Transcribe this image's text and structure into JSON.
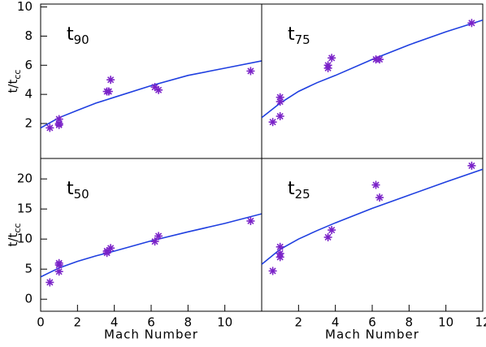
{
  "chart_data": [
    {
      "type": "scatter",
      "title": "t",
      "title_sub": "90",
      "ylabel": "t/t",
      "ylabel_sub": "cc",
      "xlim": [
        0,
        12
      ],
      "ylim": [
        -0.4,
        10.2
      ],
      "yticks": [
        2,
        4,
        6,
        8,
        10
      ],
      "color": "#7a22c8",
      "x": [
        0.5,
        1.0,
        1.0,
        1.0,
        3.6,
        3.7,
        3.8,
        6.2,
        6.4,
        11.4
      ],
      "values": [
        1.7,
        2.3,
        1.9,
        2.0,
        4.2,
        4.2,
        5.0,
        4.5,
        4.3,
        5.6
      ],
      "fit": {
        "color": "#1f3fe0",
        "x": [
          0,
          1,
          2,
          3,
          4,
          6,
          8,
          10,
          12
        ],
        "values": [
          1.7,
          2.4,
          2.9,
          3.4,
          3.8,
          4.6,
          5.3,
          5.8,
          6.3
        ]
      }
    },
    {
      "type": "scatter",
      "title": "t",
      "title_sub": "75",
      "xlim": [
        0,
        12
      ],
      "ylim": [
        -0.4,
        10.2
      ],
      "color": "#7a22c8",
      "x": [
        0.6,
        1.0,
        1.0,
        1.0,
        3.6,
        3.6,
        3.8,
        6.2,
        6.4,
        11.4
      ],
      "values": [
        2.1,
        2.5,
        3.5,
        3.8,
        5.8,
        6.0,
        6.5,
        6.4,
        6.4,
        8.9
      ],
      "fit": {
        "color": "#1f3fe0",
        "x": [
          0,
          1,
          2,
          3,
          4,
          6,
          8,
          10,
          12
        ],
        "values": [
          2.4,
          3.4,
          4.2,
          4.8,
          5.3,
          6.4,
          7.4,
          8.3,
          9.1
        ]
      }
    },
    {
      "type": "scatter",
      "title": "t",
      "title_sub": "50",
      "ylabel": "t/t",
      "ylabel_sub": "cc",
      "xlabel": "Mach Number",
      "xlim": [
        0,
        12
      ],
      "ylim": [
        -2,
        23.4
      ],
      "xticks": [
        0,
        2,
        4,
        6,
        8,
        10
      ],
      "yticks": [
        0,
        5,
        10,
        15,
        20
      ],
      "color": "#7a22c8",
      "x": [
        0.5,
        1.0,
        1.0,
        1.0,
        3.6,
        3.6,
        3.8,
        6.2,
        6.4,
        11.4
      ],
      "values": [
        2.8,
        4.6,
        5.7,
        6.0,
        7.7,
        8.0,
        8.5,
        9.6,
        10.5,
        13.0
      ],
      "fit": {
        "color": "#1f3fe0",
        "x": [
          0,
          1,
          2,
          3,
          4,
          6,
          8,
          10,
          12
        ],
        "values": [
          3.7,
          5.2,
          6.3,
          7.2,
          8.0,
          9.7,
          11.2,
          12.6,
          14.2
        ]
      }
    },
    {
      "type": "scatter",
      "title": "t",
      "title_sub": "25",
      "xlabel": "Mach Number",
      "xlim": [
        0,
        12
      ],
      "ylim": [
        -2,
        23.4
      ],
      "xticks": [
        2,
        4,
        6,
        8,
        10,
        12
      ],
      "color": "#7a22c8",
      "x": [
        0.6,
        1.0,
        1.0,
        1.0,
        3.6,
        3.8,
        6.2,
        6.4,
        11.4
      ],
      "values": [
        4.7,
        7.0,
        7.6,
        8.7,
        10.3,
        11.5,
        19.0,
        16.9,
        22.2
      ],
      "fit": {
        "color": "#1f3fe0",
        "x": [
          0,
          1,
          2,
          3,
          4,
          6,
          8,
          10,
          12
        ],
        "values": [
          5.8,
          8.3,
          10.0,
          11.4,
          12.7,
          15.1,
          17.3,
          19.5,
          21.6
        ]
      }
    }
  ]
}
